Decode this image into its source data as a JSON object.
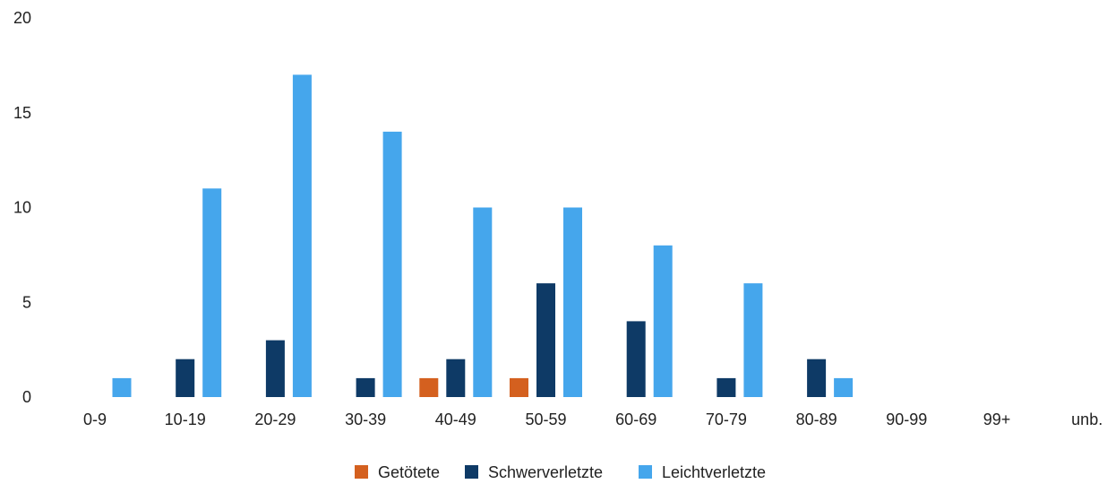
{
  "chart_data": {
    "type": "bar",
    "title": "",
    "xlabel": "",
    "ylabel": "",
    "ylim": [
      0,
      20
    ],
    "yticks": [
      0,
      5,
      10,
      15,
      20
    ],
    "grid": false,
    "legend_position": "bottom-center",
    "categories": [
      "0-9",
      "10-19",
      "20-29",
      "30-39",
      "40-49",
      "50-59",
      "60-69",
      "70-79",
      "80-89",
      "90-99",
      "99+",
      "unb."
    ],
    "series": [
      {
        "name": "Getötete",
        "color": "#d4601f",
        "values": [
          0,
          0,
          0,
          0,
          1,
          1,
          0,
          0,
          0,
          0,
          0,
          0
        ]
      },
      {
        "name": "Schwerverletzte",
        "color": "#0e3a66",
        "values": [
          0,
          2,
          3,
          1,
          2,
          6,
          4,
          1,
          2,
          0,
          0,
          0
        ]
      },
      {
        "name": "Leichtverletzte",
        "color": "#45a6ec",
        "values": [
          1,
          11,
          17,
          14,
          10,
          10,
          8,
          6,
          1,
          0,
          0,
          0
        ]
      }
    ]
  }
}
